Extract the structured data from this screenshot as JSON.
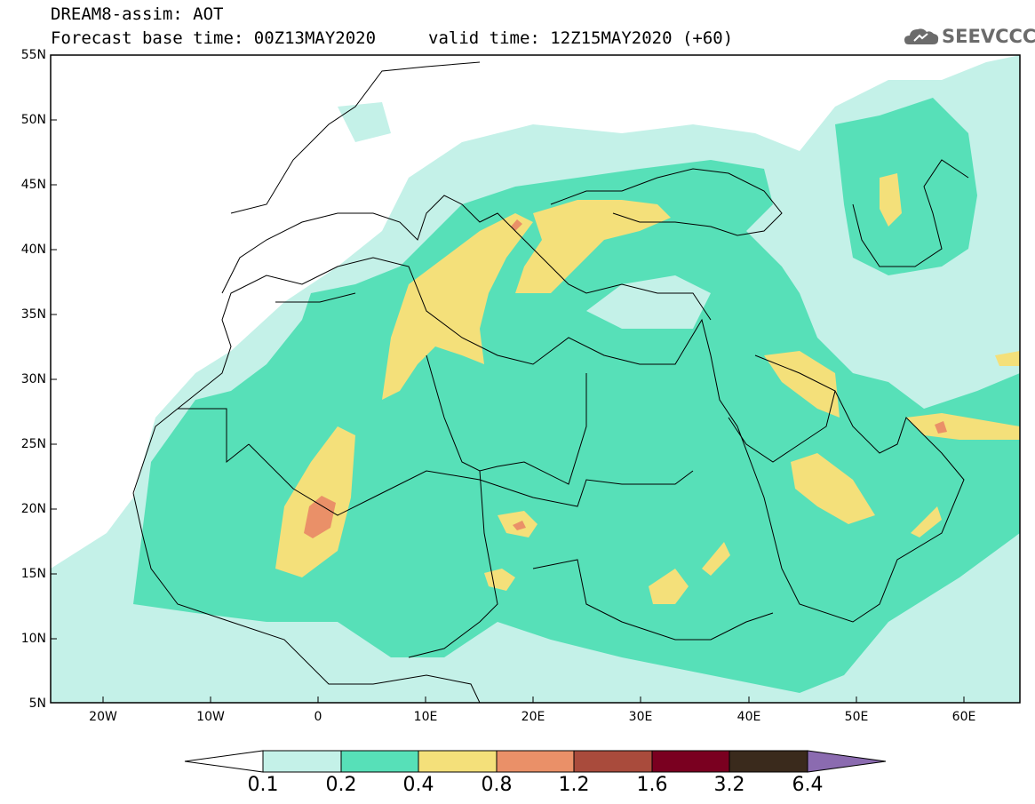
{
  "header": {
    "title_line1": "DREAM8-assim: AOT",
    "title_line2": "Forecast base time: 00Z13MAY2020",
    "valid_time": "valid time: 12Z15MAY2020 (+60)",
    "logo_text": "SEEVCCC",
    "logo_icon": "cloud-icon"
  },
  "map": {
    "lat_labels": [
      "55N",
      "50N",
      "45N",
      "40N",
      "35N",
      "30N",
      "25N",
      "20N",
      "15N",
      "10N",
      "5N"
    ],
    "lon_labels": [
      "20W",
      "10W",
      "0",
      "10E",
      "20E",
      "30E",
      "40E",
      "50E",
      "60E"
    ],
    "lat_range": [
      5,
      55
    ],
    "lon_range": [
      -25,
      65
    ],
    "grid": false
  },
  "colorbar": {
    "labels": [
      "0.1",
      "0.2",
      "0.4",
      "0.8",
      "1.2",
      "1.6",
      "3.2",
      "6.4"
    ],
    "colors": [
      "#ffffff",
      "#c4f1e8",
      "#57e0b8",
      "#f4e07a",
      "#ea9068",
      "#a94b3c",
      "#7a0020",
      "#3a2a1c",
      "#8b6bb0"
    ]
  },
  "colors": {
    "level_0_1": "#c4f1e8",
    "level_0_2": "#57e0b8",
    "level_0_4": "#f4e07a",
    "level_0_8": "#ea9068"
  }
}
